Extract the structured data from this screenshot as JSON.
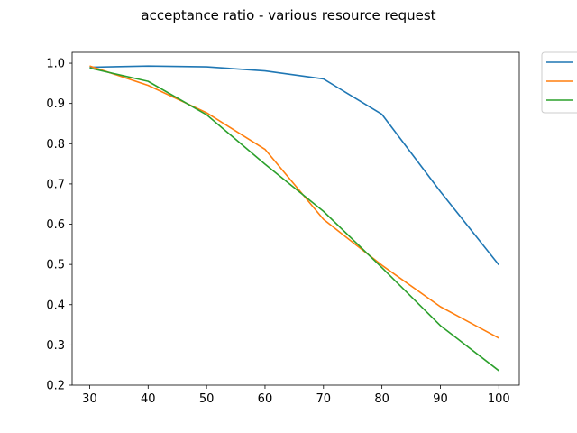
{
  "chart_data": {
    "type": "line",
    "title": "acceptance ratio - various resource request",
    "x": [
      30,
      40,
      50,
      60,
      70,
      80,
      90,
      100
    ],
    "series": [
      {
        "color": "#1f77b4",
        "values": [
          0.99,
          0.993,
          0.991,
          0.981,
          0.961,
          0.873,
          0.681,
          0.499
        ]
      },
      {
        "color": "#ff7f0e",
        "values": [
          0.993,
          0.945,
          0.877,
          0.786,
          0.612,
          0.498,
          0.395,
          0.317
        ]
      },
      {
        "color": "#2ca02c",
        "values": [
          0.988,
          0.955,
          0.872,
          0.749,
          0.632,
          0.492,
          0.348,
          0.236
        ]
      }
    ],
    "xlim": [
      27,
      103.5
    ],
    "ylim": [
      0.2,
      1.027
    ],
    "xticks": [
      30,
      40,
      50,
      60,
      70,
      80,
      90,
      100
    ],
    "yticks": [
      0.2,
      0.3,
      0.4,
      0.5,
      0.6,
      0.7,
      0.8,
      0.9,
      1.0
    ],
    "legend_placement": "outside-top-right",
    "grid": false
  }
}
